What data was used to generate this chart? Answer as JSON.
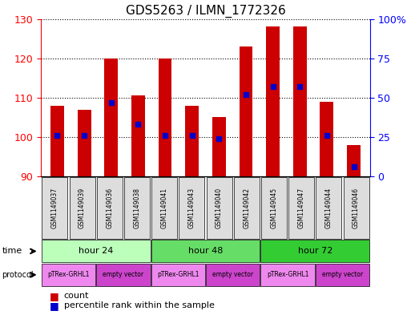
{
  "title": "GDS5263 / ILMN_1772326",
  "samples": [
    "GSM1149037",
    "GSM1149039",
    "GSM1149036",
    "GSM1149038",
    "GSM1149041",
    "GSM1149043",
    "GSM1149040",
    "GSM1149042",
    "GSM1149045",
    "GSM1149047",
    "GSM1149044",
    "GSM1149046"
  ],
  "counts": [
    108.0,
    107.0,
    120.0,
    110.5,
    120.0,
    108.0,
    105.0,
    123.0,
    128.0,
    128.0,
    109.0,
    98.0
  ],
  "percentiles": [
    26,
    26,
    47,
    33,
    26,
    26,
    24,
    52,
    57,
    57,
    26,
    6
  ],
  "ymin": 90,
  "ymax": 130,
  "yticks_left": [
    90,
    100,
    110,
    120,
    130
  ],
  "yticks_right": [
    0,
    25,
    50,
    75,
    100
  ],
  "bar_color": "#cc0000",
  "marker_color": "#0000cc",
  "time_groups": [
    {
      "label": "hour 24",
      "start": 0,
      "end": 4
    },
    {
      "label": "hour 48",
      "start": 4,
      "end": 8
    },
    {
      "label": "hour 72",
      "start": 8,
      "end": 12
    }
  ],
  "time_colors": [
    "#bbffbb",
    "#66dd66",
    "#33cc33"
  ],
  "protocol_groups": [
    {
      "label": "pTRex-GRHL1",
      "start": 0,
      "end": 2
    },
    {
      "label": "empty vector",
      "start": 2,
      "end": 4
    },
    {
      "label": "pTRex-GRHL1",
      "start": 4,
      "end": 6
    },
    {
      "label": "empty vector",
      "start": 6,
      "end": 8
    },
    {
      "label": "pTRex-GRHL1",
      "start": 8,
      "end": 10
    },
    {
      "label": "empty vector",
      "start": 10,
      "end": 12
    }
  ],
  "protocol_colors": [
    "#ee88ee",
    "#cc44cc",
    "#ee88ee",
    "#cc44cc",
    "#ee88ee",
    "#cc44cc"
  ],
  "background_color": "#ffffff"
}
